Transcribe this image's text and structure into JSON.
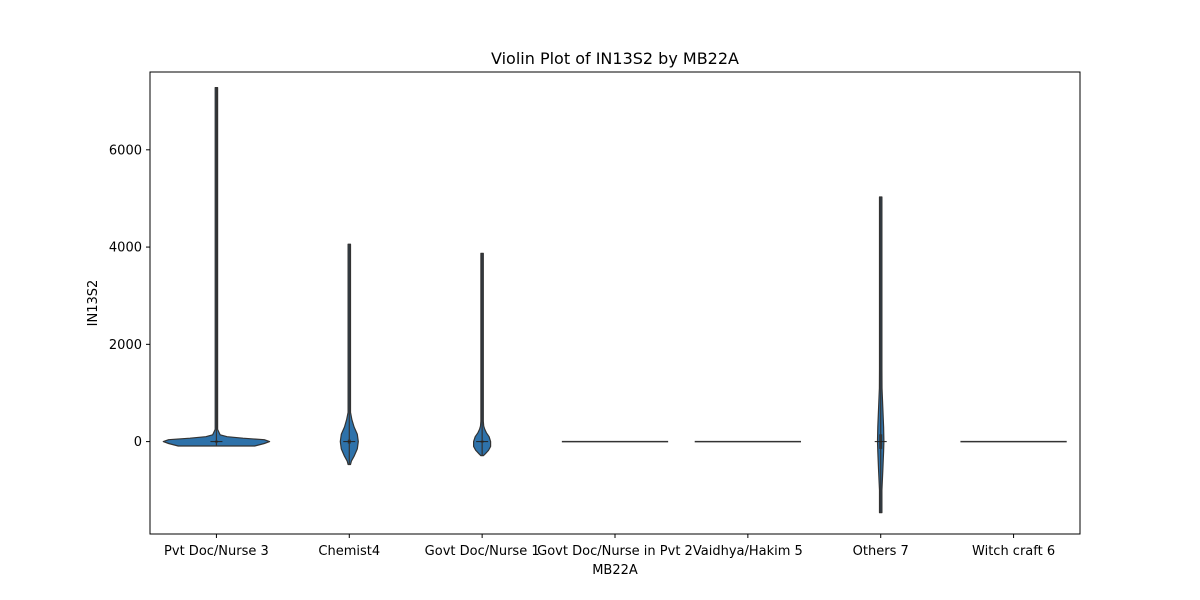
{
  "chart_data": {
    "type": "violin",
    "title": "Violin Plot of IN13S2 by MB22A",
    "xlabel": "MB22A",
    "ylabel": "IN13S2",
    "ylim": [
      -1900,
      7600
    ],
    "yticks": [
      0,
      2000,
      4000,
      6000
    ],
    "grid": false,
    "fill_color": "#2e72aa",
    "edge_color": "#333333",
    "categories": [
      "Pvt Doc/Nurse 3",
      "Chemist4",
      "Govt Doc/Nurse 1",
      "Govt Doc/Nurse in Pvt 2",
      "Vaidhya/Hakim 5",
      "Others 7",
      "Witch craft 6"
    ],
    "violins": [
      {
        "min": -90,
        "max": 7280,
        "median": 0,
        "q1": -20,
        "q3": 20,
        "profile": [
          [
            -90,
            0.72
          ],
          [
            -40,
            0.9
          ],
          [
            0,
            1.0
          ],
          [
            40,
            0.9
          ],
          [
            70,
            0.5
          ],
          [
            100,
            0.2
          ],
          [
            140,
            0.07
          ],
          [
            250,
            0.02
          ],
          [
            700,
            0.012
          ],
          [
            7280,
            0.01
          ]
        ]
      },
      {
        "min": -470,
        "max": 4060,
        "median": 0,
        "q1": -40,
        "q3": 40,
        "profile": [
          [
            -470,
            0.01
          ],
          [
            -400,
            0.04
          ],
          [
            -300,
            0.09
          ],
          [
            -150,
            0.15
          ],
          [
            0,
            0.17
          ],
          [
            150,
            0.15
          ],
          [
            300,
            0.09
          ],
          [
            450,
            0.05
          ],
          [
            600,
            0.02
          ],
          [
            800,
            0.01
          ],
          [
            4060,
            0.008
          ]
        ]
      },
      {
        "min": -290,
        "max": 3870,
        "median": 0,
        "q1": -20,
        "q3": 20,
        "profile": [
          [
            -290,
            0.02
          ],
          [
            -250,
            0.06
          ],
          [
            -180,
            0.12
          ],
          [
            -100,
            0.16
          ],
          [
            0,
            0.16
          ],
          [
            100,
            0.13
          ],
          [
            180,
            0.08
          ],
          [
            250,
            0.05
          ],
          [
            320,
            0.03
          ],
          [
            420,
            0.012
          ],
          [
            3870,
            0.008
          ]
        ]
      },
      {
        "min": 0,
        "max": 0,
        "median": 0,
        "q1": 0,
        "q3": 0,
        "profile": [
          [
            0,
            1.0
          ]
        ]
      },
      {
        "min": 0,
        "max": 0,
        "median": 0,
        "q1": 0,
        "q3": 0,
        "profile": [
          [
            0,
            1.0
          ]
        ]
      },
      {
        "min": -1460,
        "max": 5030,
        "median": 0,
        "q1": -150,
        "q3": 150,
        "profile": [
          [
            -1460,
            0.008
          ],
          [
            -1000,
            0.02
          ],
          [
            -600,
            0.04
          ],
          [
            -200,
            0.055
          ],
          [
            0,
            0.06
          ],
          [
            300,
            0.055
          ],
          [
            700,
            0.04
          ],
          [
            1100,
            0.025
          ],
          [
            1500,
            0.012
          ],
          [
            2000,
            0.006
          ],
          [
            5030,
            0.005
          ]
        ]
      },
      {
        "min": 0,
        "max": 0,
        "median": 0,
        "q1": 0,
        "q3": 0,
        "profile": [
          [
            0,
            1.0
          ]
        ]
      }
    ]
  }
}
